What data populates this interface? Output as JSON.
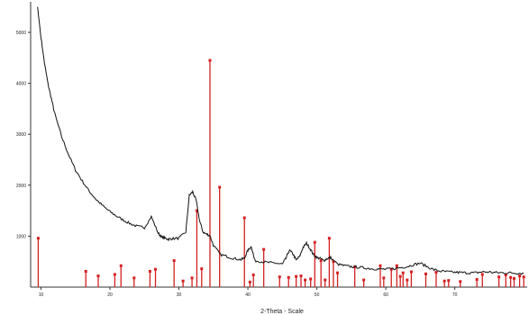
{
  "chart_data": {
    "type": "line",
    "title": "",
    "xlabel": "2-Theta - Scale",
    "ylabel": "",
    "xlim": [
      8.5,
      80.5
    ],
    "ylim": [
      0,
      5600
    ],
    "grid": false,
    "x_ticks": [
      10,
      20,
      30,
      40,
      50,
      60,
      70
    ],
    "y_ticks": [
      1000,
      2000,
      3000,
      4000,
      5000
    ],
    "colors": {
      "trace": "#111111",
      "reference": "#d42020",
      "axis": "#333333"
    },
    "series": [
      {
        "type": "line",
        "x": [
          9.5,
          10.0,
          10.5,
          11.0,
          11.5,
          12.0,
          13.0,
          14.0,
          15.0,
          16.0,
          17.0,
          18.0,
          19.0,
          20.0,
          21.0,
          22.0,
          23.0,
          24.0,
          25.0,
          26.0,
          27.0,
          27.5,
          28.0,
          28.5,
          29.0,
          30.0,
          31.0,
          31.5,
          32.0,
          32.5,
          33.0,
          33.5,
          34.0,
          34.5,
          35.0,
          36.0,
          37.0,
          38.0,
          39.0,
          39.5,
          40.0,
          40.5,
          41.0,
          42.0,
          43.0,
          44.0,
          45.0,
          45.5,
          46.0,
          46.5,
          47.0,
          47.5,
          48.0,
          48.5,
          49.0,
          49.5,
          50.0,
          50.5,
          51.0,
          51.5,
          52.0,
          53.0,
          54.0,
          55.0,
          56.0,
          57.0,
          58.0,
          59.0,
          60.0,
          61.0,
          62.0,
          63.0,
          64.0,
          65.0,
          66.0,
          67.0,
          68.0,
          69.0,
          70.0,
          71.0,
          72.0,
          73.0,
          74.0,
          75.0,
          76.0,
          77.0,
          78.0,
          79.0,
          80.0
        ],
        "y": [
          5500,
          4900,
          4400,
          4000,
          3700,
          3400,
          2950,
          2600,
          2300,
          2080,
          1880,
          1720,
          1590,
          1480,
          1390,
          1310,
          1240,
          1190,
          1170,
          1380,
          1060,
          980,
          960,
          940,
          950,
          960,
          1080,
          1800,
          1870,
          1700,
          1300,
          1080,
          1040,
          1010,
          820,
          640,
          600,
          560,
          540,
          570,
          720,
          800,
          520,
          500,
          480,
          470,
          450,
          560,
          720,
          660,
          530,
          600,
          780,
          860,
          760,
          640,
          580,
          560,
          520,
          560,
          580,
          450,
          420,
          400,
          390,
          375,
          360,
          355,
          350,
          360,
          380,
          400,
          440,
          470,
          400,
          340,
          310,
          300,
          290,
          285,
          280,
          280,
          300,
          295,
          285,
          280,
          280,
          275,
          270
        ]
      },
      {
        "type": "stick",
        "x": [
          9.6,
          16.5,
          18.3,
          20.7,
          21.6,
          23.5,
          25.8,
          26.6,
          29.3,
          30.6,
          31.9,
          32.6,
          33.3,
          34.5,
          35.9,
          39.5,
          40.3,
          40.8,
          42.3,
          44.6,
          45.9,
          47.0,
          47.7,
          48.3,
          49.1,
          49.7,
          50.6,
          51.2,
          51.8,
          52.4,
          53.0,
          55.5,
          56.8,
          59.2,
          59.7,
          60.8,
          61.6,
          62.1,
          62.5,
          63.1,
          63.7,
          65.8,
          67.3,
          68.5,
          69.1,
          70.8,
          73.2,
          74.0,
          76.4,
          77.4,
          78.1,
          78.6,
          79.4,
          80.0
        ],
        "y": [
          960,
          310,
          220,
          250,
          420,
          180,
          310,
          350,
          520,
          120,
          180,
          1500,
          360,
          4450,
          1960,
          1360,
          100,
          240,
          740,
          200,
          190,
          210,
          220,
          140,
          160,
          880,
          520,
          140,
          960,
          500,
          280,
          400,
          140,
          420,
          180,
          350,
          420,
          210,
          280,
          140,
          300,
          260,
          290,
          120,
          130,
          110,
          150,
          250,
          200,
          240,
          190,
          170,
          220,
          200
        ]
      }
    ]
  }
}
